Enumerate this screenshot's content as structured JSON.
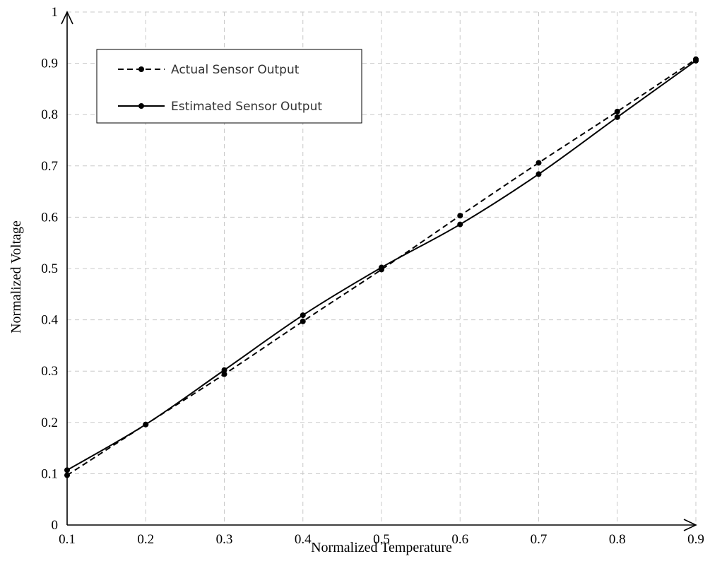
{
  "chart_data": {
    "type": "line",
    "xlabel": "Normalized Temperature",
    "ylabel": "Normalized  Voltage",
    "xlim": [
      0.1,
      0.9
    ],
    "ylim": [
      0,
      1
    ],
    "x_ticks": [
      "0.1",
      "0.2",
      "0.3",
      "0.4",
      "0.5",
      "0.6",
      "0.7",
      "0.8",
      "0.9"
    ],
    "y_ticks": [
      "0",
      "0.1",
      "0.2",
      "0.3",
      "0.4",
      "0.5",
      "0.6",
      "0.7",
      "0.8",
      "0.9",
      "1"
    ],
    "grid": true,
    "legend_position": "top-left",
    "series": [
      {
        "name": "Actual Sensor Output",
        "style": "dashed",
        "x": [
          0.1,
          0.2,
          0.3,
          0.4,
          0.5,
          0.6,
          0.7,
          0.8,
          0.9
        ],
        "y": [
          0.097,
          0.196,
          0.294,
          0.397,
          0.498,
          0.603,
          0.706,
          0.806,
          0.908
        ]
      },
      {
        "name": "Estimated Sensor Output",
        "style": "solid",
        "x": [
          0.1,
          0.2,
          0.3,
          0.4,
          0.5,
          0.6,
          0.7,
          0.8,
          0.9
        ],
        "y": [
          0.107,
          0.196,
          0.302,
          0.409,
          0.502,
          0.586,
          0.684,
          0.795,
          0.905
        ]
      }
    ]
  }
}
